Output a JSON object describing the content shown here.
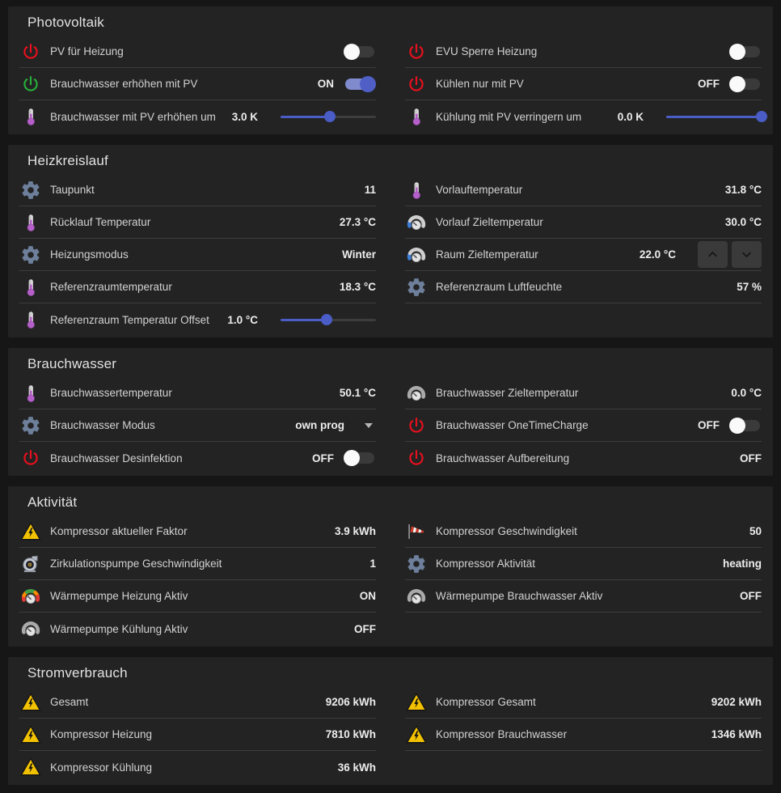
{
  "colors": {
    "page_background": "#161616",
    "card_background": "#232323",
    "divider": "#3d3d3d",
    "accent_blue": "#4a5cc5",
    "toggle_on_track": "#7f8bcd",
    "icon_red": "#e8101e",
    "icon_green": "#27ae3a",
    "icon_purple": "#b55fc9",
    "icon_slate": "#6e7f9b",
    "warning_yellow": "#f2c200"
  },
  "sections": [
    {
      "title": "Photovoltaik",
      "columns": [
        {
          "rows": [
            {
              "icon": "power-red",
              "label": "PV für Heizung",
              "control": "toggle",
              "state": "off",
              "state_label": ""
            },
            {
              "icon": "power-green",
              "label": "Brauchwasser erhöhen mit PV",
              "control": "toggle",
              "state": "on",
              "state_label": "ON"
            },
            {
              "icon": "thermometer",
              "label": "Brauchwasser mit PV erhöhen um",
              "value": "3.0 K",
              "control": "slider",
              "slider_percent": 52
            }
          ]
        },
        {
          "rows": [
            {
              "icon": "power-red",
              "label": "EVU Sperre Heizung",
              "control": "toggle",
              "state": "off",
              "state_label": ""
            },
            {
              "icon": "power-red",
              "label": "Kühlen nur mit PV",
              "control": "toggle",
              "state": "off",
              "state_label": "OFF"
            },
            {
              "icon": "thermometer",
              "label": "Kühlung mit PV verringern um",
              "value": "0.0 K",
              "control": "slider",
              "slider_percent": 100
            }
          ]
        }
      ]
    },
    {
      "title": "Heizkreislauf",
      "columns": [
        {
          "rows": [
            {
              "icon": "gear",
              "label": "Taupunkt",
              "value": "11"
            },
            {
              "icon": "thermometer",
              "label": "Rücklauf Temperatur",
              "value": "27.3 °C"
            },
            {
              "icon": "gear",
              "label": "Heizungsmodus",
              "value": "Winter"
            },
            {
              "icon": "thermometer",
              "label": "Referenzraumtemperatur",
              "value": "18.3 °C"
            },
            {
              "icon": "thermometer",
              "label": "Referenzraum Temperatur Offset",
              "value": "1.0 °C",
              "control": "slider",
              "slider_percent": 48
            }
          ]
        },
        {
          "rows": [
            {
              "icon": "thermometer",
              "label": "Vorlauftemperatur",
              "value": "31.8 °C"
            },
            {
              "icon": "gauge-blue",
              "label": "Vorlauf Zieltemperatur",
              "value": "30.0 °C"
            },
            {
              "icon": "gauge-blue",
              "label": "Raum Zieltemperatur",
              "value": "22.0 °C",
              "control": "stepper"
            },
            {
              "icon": "gear",
              "label": "Referenzraum Luftfeuchte",
              "value": "57 %"
            }
          ]
        }
      ]
    },
    {
      "title": "Brauchwasser",
      "columns": [
        {
          "rows": [
            {
              "icon": "thermometer",
              "label": "Brauchwassertemperatur",
              "value": "50.1 °C"
            },
            {
              "icon": "gear",
              "label": "Brauchwasser Modus",
              "value": "own prog",
              "control": "select"
            },
            {
              "icon": "power-red",
              "label": "Brauchwasser Desinfektion",
              "control": "toggle",
              "state": "off",
              "state_label": "OFF"
            }
          ]
        },
        {
          "rows": [
            {
              "icon": "gauge-gray",
              "label": "Brauchwasser Zieltemperatur",
              "value": "0.0 °C"
            },
            {
              "icon": "power-red",
              "label": "Brauchwasser OneTimeCharge",
              "control": "toggle",
              "state": "off",
              "state_label": "OFF"
            },
            {
              "icon": "power-red",
              "label": "Brauchwasser Aufbereitung",
              "value": "OFF"
            }
          ]
        }
      ]
    },
    {
      "title": "Aktivität",
      "columns": [
        {
          "rows": [
            {
              "icon": "warning",
              "label": "Kompressor aktueller Faktor",
              "value": "3.9 kWh"
            },
            {
              "icon": "pump",
              "label": "Zirkulationspumpe Geschwindigkeit",
              "value": "1"
            },
            {
              "icon": "gauge-color",
              "label": "Wärmepumpe Heizung Aktiv",
              "value": "ON"
            },
            {
              "icon": "gauge-gray",
              "label": "Wärmepumpe Kühlung Aktiv",
              "value": "OFF"
            }
          ]
        },
        {
          "rows": [
            {
              "icon": "windsock",
              "label": "Kompressor Geschwindigkeit",
              "value": "50"
            },
            {
              "icon": "gear",
              "label": "Kompressor Aktivität",
              "value": "heating"
            },
            {
              "icon": "gauge-gray",
              "label": "Wärmepumpe Brauchwasser Aktiv",
              "value": "OFF"
            }
          ]
        }
      ]
    },
    {
      "title": "Stromverbrauch",
      "columns": [
        {
          "rows": [
            {
              "icon": "warning",
              "label": "Gesamt",
              "value": "9206 kWh"
            },
            {
              "icon": "warning",
              "label": "Kompressor Heizung",
              "value": "7810 kWh"
            },
            {
              "icon": "warning",
              "label": "Kompressor Kühlung",
              "value": "36 kWh"
            }
          ]
        },
        {
          "rows": [
            {
              "icon": "warning",
              "label": "Kompressor Gesamt",
              "value": "9202 kWh"
            },
            {
              "icon": "warning",
              "label": "Kompressor Brauchwasser",
              "value": "1346 kWh"
            }
          ]
        }
      ]
    }
  ]
}
